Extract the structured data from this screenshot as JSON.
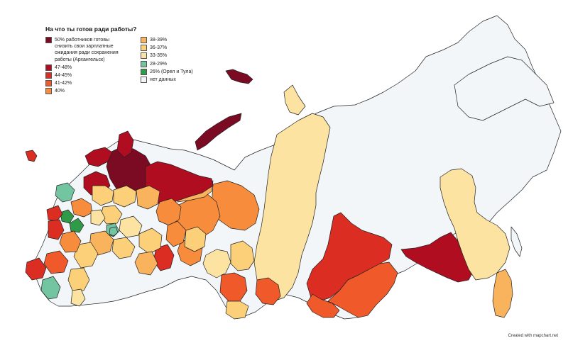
{
  "title": "На что ты готов ради работы?",
  "legend": {
    "left": [
      {
        "label": "50% работников готовы\nснизить свои зарплатные\nожидания ради сохранения\nработы (Архангельск)",
        "color": "#7b0a23"
      },
      {
        "label": "47-48%",
        "color": "#b00d21"
      },
      {
        "label": "44-45%",
        "color": "#db2d22"
      },
      {
        "label": "41-42%",
        "color": "#f05a2b"
      },
      {
        "label": "40%",
        "color": "#f78d3c"
      }
    ],
    "right": [
      {
        "label": "38-39%",
        "color": "#f8b35c"
      },
      {
        "label": "36-37%",
        "color": "#fbd079"
      },
      {
        "label": "33-35%",
        "color": "#fce3a1"
      },
      {
        "label": "28-29%",
        "color": "#73c4a0"
      },
      {
        "label": "26% (Орел и Тула)",
        "color": "#2f9a48"
      },
      {
        "label": "нет данных",
        "color": "#f2f6f8"
      }
    ]
  },
  "credit": "Created with mapchart.net",
  "colors": {
    "no_data": "#f2f6f8",
    "border": "#222222"
  }
}
